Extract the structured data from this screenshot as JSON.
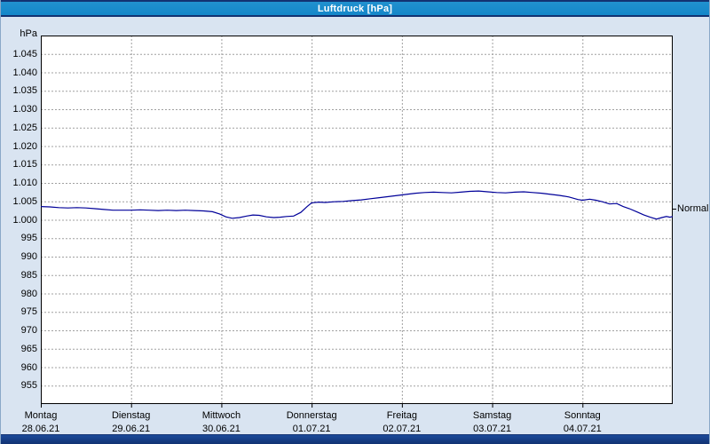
{
  "title_bar": {
    "title": "Luftdruck [hPa]"
  },
  "colors": {
    "title_bar_bg": "#1487c9",
    "border_navy": "#123272",
    "page_bg": "#d9e4f1",
    "plot_bg": "#ffffff",
    "grid": "#a0a0a0",
    "plot_border": "#000000",
    "line": "#000099",
    "text": "#000000"
  },
  "chart_data": {
    "type": "line",
    "title": "Luftdruck [hPa]",
    "ylabel": "hPa",
    "ylim": [
      950,
      1050
    ],
    "xlim_days": [
      0,
      7
    ],
    "grid": "dashed",
    "legend": "none",
    "y_ticks": [
      {
        "value": 1045,
        "label": "1.045"
      },
      {
        "value": 1040,
        "label": "1.040"
      },
      {
        "value": 1035,
        "label": "1.035"
      },
      {
        "value": 1030,
        "label": "1.030"
      },
      {
        "value": 1025,
        "label": "1.025"
      },
      {
        "value": 1020,
        "label": "1.020"
      },
      {
        "value": 1015,
        "label": "1.015"
      },
      {
        "value": 1010,
        "label": "1.010"
      },
      {
        "value": 1005,
        "label": "1.005"
      },
      {
        "value": 1000,
        "label": "1.000"
      },
      {
        "value": 995,
        "label": "995"
      },
      {
        "value": 990,
        "label": "990"
      },
      {
        "value": 985,
        "label": "985"
      },
      {
        "value": 980,
        "label": "980"
      },
      {
        "value": 975,
        "label": "975"
      },
      {
        "value": 970,
        "label": "970"
      },
      {
        "value": 965,
        "label": "965"
      },
      {
        "value": 960,
        "label": "960"
      },
      {
        "value": 955,
        "label": "955"
      }
    ],
    "days": [
      {
        "name": "Montag",
        "date": "28.06.21"
      },
      {
        "name": "Dienstag",
        "date": "29.06.21"
      },
      {
        "name": "Mittwoch",
        "date": "30.06.21"
      },
      {
        "name": "Donnerstag",
        "date": "01.07.21"
      },
      {
        "name": "Freitag",
        "date": "02.07.21"
      },
      {
        "name": "Samstag",
        "date": "03.07.21"
      },
      {
        "name": "Sonntag",
        "date": "04.07.21"
      }
    ],
    "annotations": [
      {
        "label": "Normal",
        "value": 1003
      }
    ],
    "series": [
      {
        "name": "Luftdruck",
        "color": "#000099",
        "points": [
          [
            0.0,
            1003.6
          ],
          [
            0.1,
            1003.5
          ],
          [
            0.2,
            1003.3
          ],
          [
            0.3,
            1003.2
          ],
          [
            0.4,
            1003.3
          ],
          [
            0.5,
            1003.2
          ],
          [
            0.6,
            1003.0
          ],
          [
            0.7,
            1002.8
          ],
          [
            0.8,
            1002.6
          ],
          [
            0.9,
            1002.6
          ],
          [
            1.0,
            1002.6
          ],
          [
            1.1,
            1002.7
          ],
          [
            1.2,
            1002.6
          ],
          [
            1.3,
            1002.5
          ],
          [
            1.4,
            1002.6
          ],
          [
            1.5,
            1002.5
          ],
          [
            1.6,
            1002.6
          ],
          [
            1.7,
            1002.5
          ],
          [
            1.8,
            1002.4
          ],
          [
            1.9,
            1002.2
          ],
          [
            1.98,
            1001.6
          ],
          [
            2.05,
            1000.8
          ],
          [
            2.12,
            1000.4
          ],
          [
            2.2,
            1000.6
          ],
          [
            2.28,
            1001.0
          ],
          [
            2.35,
            1001.3
          ],
          [
            2.42,
            1001.2
          ],
          [
            2.5,
            1000.8
          ],
          [
            2.58,
            1000.6
          ],
          [
            2.65,
            1000.7
          ],
          [
            2.72,
            1000.9
          ],
          [
            2.8,
            1001.0
          ],
          [
            2.88,
            1002.0
          ],
          [
            2.95,
            1003.6
          ],
          [
            3.0,
            1004.6
          ],
          [
            3.08,
            1004.8
          ],
          [
            3.15,
            1004.7
          ],
          [
            3.25,
            1004.9
          ],
          [
            3.35,
            1005.0
          ],
          [
            3.45,
            1005.2
          ],
          [
            3.55,
            1005.4
          ],
          [
            3.65,
            1005.7
          ],
          [
            3.75,
            1006.0
          ],
          [
            3.85,
            1006.3
          ],
          [
            3.95,
            1006.6
          ],
          [
            4.05,
            1006.9
          ],
          [
            4.15,
            1007.2
          ],
          [
            4.25,
            1007.4
          ],
          [
            4.35,
            1007.5
          ],
          [
            4.45,
            1007.4
          ],
          [
            4.55,
            1007.3
          ],
          [
            4.65,
            1007.5
          ],
          [
            4.75,
            1007.7
          ],
          [
            4.85,
            1007.8
          ],
          [
            4.95,
            1007.6
          ],
          [
            5.05,
            1007.4
          ],
          [
            5.15,
            1007.3
          ],
          [
            5.25,
            1007.5
          ],
          [
            5.35,
            1007.6
          ],
          [
            5.45,
            1007.4
          ],
          [
            5.55,
            1007.2
          ],
          [
            5.65,
            1006.9
          ],
          [
            5.75,
            1006.6
          ],
          [
            5.85,
            1006.2
          ],
          [
            5.95,
            1005.5
          ],
          [
            6.0,
            1005.3
          ],
          [
            6.08,
            1005.6
          ],
          [
            6.15,
            1005.3
          ],
          [
            6.22,
            1004.9
          ],
          [
            6.3,
            1004.3
          ],
          [
            6.38,
            1004.4
          ],
          [
            6.45,
            1003.6
          ],
          [
            6.52,
            1003.0
          ],
          [
            6.6,
            1002.2
          ],
          [
            6.68,
            1001.3
          ],
          [
            6.75,
            1000.7
          ],
          [
            6.82,
            1000.2
          ],
          [
            6.88,
            1000.6
          ],
          [
            6.93,
            1000.9
          ],
          [
            6.97,
            1000.7
          ],
          [
            7.0,
            1000.9
          ]
        ]
      }
    ]
  }
}
